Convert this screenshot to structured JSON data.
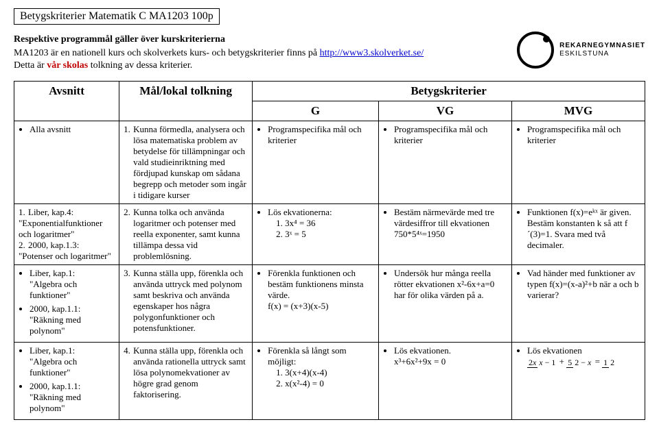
{
  "header": {
    "title_box": "Betygskriterier Matematik C MA1203 100p",
    "subtitle": "Respektive programmål gäller över kurskriterierna",
    "desc_prefix": "MA1203 är en nationell kurs och skolverkets kurs- och betygskriterier finns på ",
    "desc_link": "http://www3.skolverket.se/",
    "red_line_prefix": "Detta är ",
    "red_line_emph": "vår skolas",
    "red_line_suffix": " tolkning av dessa kriterier.",
    "logo_line1": "REKARNEGYMNASIET",
    "logo_line2": "ESKILSTUNA"
  },
  "table": {
    "headers": {
      "avsnitt": "Avsnitt",
      "mal": "Mål/lokal tolkning",
      "betyg": "Betygskriterier",
      "g": "G",
      "vg": "VG",
      "mvg": "MVG"
    },
    "rows": [
      {
        "avsnitt": [
          "Alla avsnitt"
        ],
        "mal_num": "1.",
        "mal_text": "Kunna förmedla, analysera och lösa matematiska problem av betydelse för tillämpningar och vald studieinriktning med fördjupad kunskap om sådana begrepp och metoder som ingår i tidigare kurser",
        "g": [
          "Programspecifika mål och kriterier"
        ],
        "vg": [
          "Programspecifika mål och kriterier"
        ],
        "mvg": [
          "Programspecifika mål och kriterier"
        ]
      },
      {
        "avsnitt_complex": {
          "parts": [
            {
              "num": "1.",
              "label": "Liber, kap.4:",
              "quote": "\"Exponentialfunktioner och logaritmer\""
            },
            {
              "num": "2.",
              "label": "2000, kap.1.3:",
              "quote": "\"Potenser och logaritmer\""
            }
          ]
        },
        "mal_num": "2.",
        "mal_text": "Kunna tolka och använda logaritmer och potenser med reella exponenter, samt kunna tillämpa dessa vid problemlösning.",
        "g_header": "Lös ekvationerna:",
        "g_lines": [
          "1. 3x⁴ = 36",
          "2. 3ˣ = 5"
        ],
        "vg": [
          "Bestäm närmevärde med tre värdesiffror till ekvationen 750*5⁴ˣ=1950"
        ],
        "mvg": [
          "Funktionen f(x)=eᵏˣ är given. Bestäm konstanten k så att f´(3)=1. Svara med två decimaler."
        ]
      },
      {
        "avsnitt_bullets": [
          {
            "main": "Liber, kap.1:",
            "quote": "\"Algebra och funktioner\""
          },
          {
            "main": "2000, kap.1.1:",
            "quote": "\"Räkning med polynom\""
          }
        ],
        "mal_num": "3.",
        "mal_text": "Kunna ställa upp, förenkla och använda uttryck med polynom samt beskriva och använda egenskaper hos några polygonfunktioner och potensfunktioner.",
        "g_header": "Förenkla funktionen och bestäm funktionens minsta värde.",
        "g_lines": [
          "f(x) = (x+3)(x-5)"
        ],
        "vg": [
          "Undersök hur många reella rötter ekvationen x²-6x+a=0 har för olika värden på a."
        ],
        "mvg": [
          "Vad händer med funktioner av typen f(x)=(x-a)²+b när a och b varierar?"
        ]
      },
      {
        "avsnitt_bullets": [
          {
            "main": "Liber, kap.1:",
            "quote": "\"Algebra och funktioner\""
          },
          {
            "main": "2000, kap.1.1:",
            "quote": "\"Räkning med polynom\""
          }
        ],
        "mal_num": "4.",
        "mal_text": "Kunna ställa upp, förenkla och använda rationella uttryck samt lösa polynomekvationer av högre grad genom faktorisering.",
        "g_header": "Förenkla så långt som möjligt:",
        "g_lines": [
          "1.  3(x+4)(x-4)",
          "2.  x(x²-4) = 0"
        ],
        "vg": [
          "Lös ekvationen.",
          "x³+6x²+9x = 0"
        ],
        "mvg_header": "Lös ekvationen",
        "mvg_fraction": true
      }
    ]
  }
}
